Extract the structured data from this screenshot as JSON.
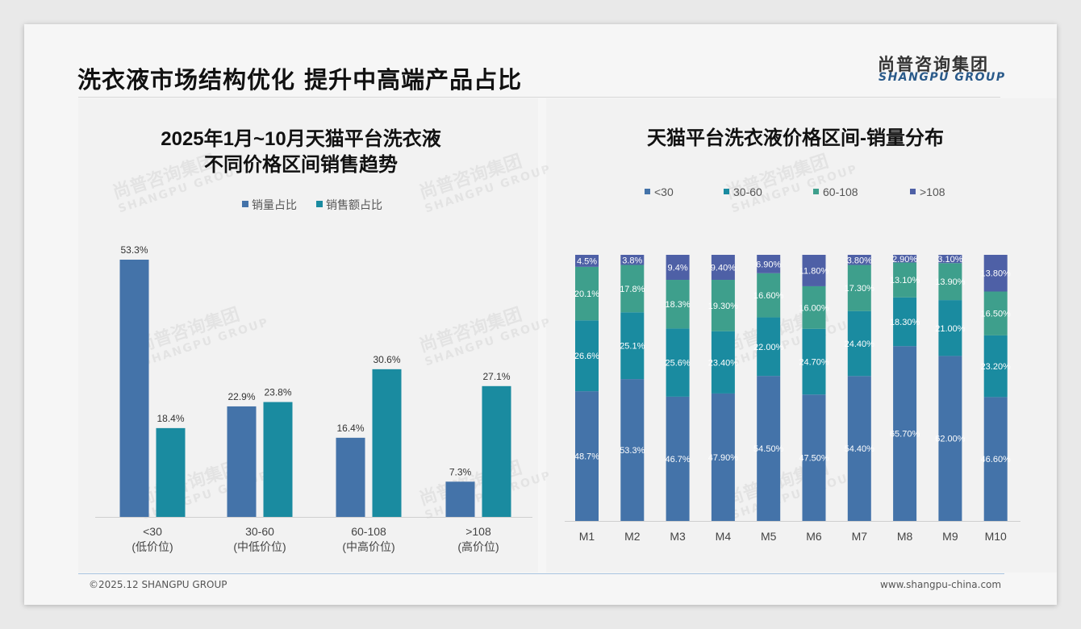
{
  "header": {
    "title": "洗衣液市场结构优化 提升中高端产品占比",
    "logo_cn": "尚普咨询集团",
    "logo_en": "SHANGPU GROUP"
  },
  "footer": {
    "copyright": "©2025.12 SHANGPU GROUP",
    "website": "www.shangpu-china.com"
  },
  "watermark": {
    "cn": "尚普咨询集团",
    "en": "SHANGPU GROUP"
  },
  "colors": {
    "c1": "#4473a9",
    "c2": "#1a8ba0",
    "c3": "#3e9f8c",
    "c4": "#4e60a6"
  },
  "chart_data": [
    {
      "type": "bar",
      "title": [
        "2025年1月~10月天猫平台洗衣液",
        "不同价格区间销售趋势"
      ],
      "categories": [
        [
          "<30",
          "(低价位)"
        ],
        [
          "30-60",
          "(中低价位)"
        ],
        [
          "60-108",
          "(中高价位)"
        ],
        [
          ">108",
          "(高价位)"
        ]
      ],
      "series": [
        {
          "name": "销量占比",
          "values": [
            53.3,
            22.9,
            16.4,
            7.3
          ],
          "labels": [
            "53.3%",
            "22.9%",
            "16.4%",
            "7.3%"
          ]
        },
        {
          "name": "销售额占比",
          "values": [
            18.4,
            23.8,
            30.6,
            27.1
          ],
          "labels": [
            "18.4%",
            "23.8%",
            "30.6%",
            "27.1%"
          ]
        }
      ],
      "ylim": [
        0,
        53.3
      ],
      "legend": "top",
      "grid": false
    },
    {
      "type": "bar",
      "stacked": true,
      "title": "天猫平台洗衣液价格区间-销量分布",
      "categories": [
        "M1",
        "M2",
        "M3",
        "M4",
        "M5",
        "M6",
        "M7",
        "M8",
        "M9",
        "M10"
      ],
      "series": [
        {
          "name": "<30",
          "values": [
            48.7,
            53.3,
            46.7,
            47.9,
            54.5,
            47.5,
            54.4,
            65.7,
            62.0,
            46.6
          ],
          "labels": [
            "48.7%",
            "53.3%",
            "46.7%",
            "47.90%",
            "54.50%",
            "47.50%",
            "54.40%",
            "65.70%",
            "62.00%",
            "46.60%"
          ]
        },
        {
          "name": "30-60",
          "values": [
            26.6,
            25.1,
            25.6,
            23.4,
            22.0,
            24.7,
            24.4,
            18.3,
            21.0,
            23.2
          ],
          "labels": [
            "26.6%",
            "25.1%",
            "25.6%",
            "23.40%",
            "22.00%",
            "24.70%",
            "24.40%",
            "18.30%",
            "21.00%",
            "23.20%"
          ]
        },
        {
          "name": "60-108",
          "values": [
            20.1,
            17.8,
            18.3,
            19.3,
            16.6,
            16.0,
            17.3,
            13.1,
            13.9,
            16.5
          ],
          "labels": [
            "20.1%",
            "17.8%",
            "18.3%",
            "19.30%",
            "16.60%",
            "16.00%",
            "17.30%",
            "13.10%",
            "13.90%",
            "16.50%"
          ]
        },
        {
          "name": ">108",
          "values": [
            4.5,
            3.8,
            9.4,
            9.4,
            6.9,
            11.8,
            3.8,
            2.9,
            3.1,
            13.8
          ],
          "labels": [
            "4.5%",
            "3.8%",
            "9.4%",
            "9.40%",
            "6.90%",
            "11.80%",
            "3.80%",
            "2.90%",
            "3.10%",
            "13.80%"
          ]
        }
      ],
      "ylim": [
        0,
        100
      ],
      "legend": "top",
      "grid": false
    }
  ]
}
